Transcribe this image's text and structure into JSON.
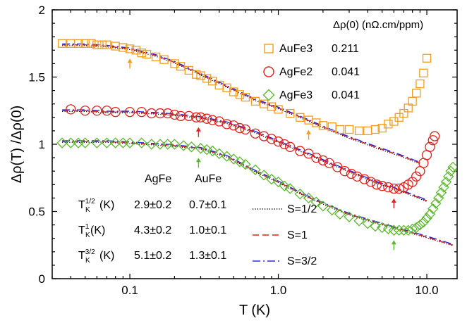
{
  "chart_data": {
    "type": "scatter",
    "xlabel": "T (K)",
    "ylabel": "Δρ(T) /Δρ(0)",
    "xscale": "log",
    "xlim": [
      0.03,
      16
    ],
    "ylim": [
      0,
      2
    ],
    "x_ticks": [
      {
        "value": 0.1,
        "label": "0.1"
      },
      {
        "value": 1,
        "label": "1.0"
      },
      {
        "value": 10,
        "label": "10.0"
      }
    ],
    "y_ticks": [
      {
        "value": 0,
        "label": "0"
      },
      {
        "value": 0.5,
        "label": "0.5"
      },
      {
        "value": 1,
        "label": "1"
      },
      {
        "value": 1.5,
        "label": "1.5"
      },
      {
        "value": 2,
        "label": "2"
      }
    ],
    "grid": false,
    "legend_placement": "top-right",
    "legend_header": "Δρ(0) (nΩ.cm/ppm)",
    "series": [
      {
        "name": "AuFe3",
        "value": "0.211",
        "marker": "square",
        "color": "#f39c1f",
        "x": [
          0.035,
          0.04,
          0.045,
          0.05,
          0.055,
          0.06,
          0.065,
          0.07,
          0.08,
          0.09,
          0.1,
          0.11,
          0.12,
          0.13,
          0.15,
          0.17,
          0.2,
          0.22,
          0.25,
          0.28,
          0.3,
          0.33,
          0.36,
          0.4,
          0.45,
          0.5,
          0.55,
          0.6,
          0.7,
          0.8,
          0.9,
          1.0,
          1.2,
          1.4,
          1.6,
          1.8,
          2.0,
          2.3,
          2.6,
          3.0,
          3.5,
          4.0,
          4.5,
          5.0,
          5.5,
          6.0,
          6.5,
          7.0,
          7.5,
          8.0,
          8.5,
          9.0,
          9.5,
          10.0
        ],
        "y": [
          1.75,
          1.75,
          1.75,
          1.75,
          1.75,
          1.74,
          1.74,
          1.74,
          1.73,
          1.72,
          1.71,
          1.7,
          1.68,
          1.67,
          1.65,
          1.63,
          1.6,
          1.58,
          1.55,
          1.52,
          1.51,
          1.49,
          1.47,
          1.44,
          1.42,
          1.39,
          1.37,
          1.35,
          1.32,
          1.3,
          1.28,
          1.26,
          1.23,
          1.2,
          1.18,
          1.16,
          1.14,
          1.13,
          1.11,
          1.11,
          1.1,
          1.1,
          1.11,
          1.12,
          1.15,
          1.17,
          1.2,
          1.23,
          1.27,
          1.32,
          1.38,
          1.45,
          1.53,
          1.64
        ]
      },
      {
        "name": "AgFe2",
        "value": "0.041",
        "marker": "circle",
        "color": "#e0211d",
        "x": [
          0.04,
          0.05,
          0.06,
          0.07,
          0.08,
          0.1,
          0.12,
          0.14,
          0.16,
          0.18,
          0.2,
          0.22,
          0.25,
          0.28,
          0.3,
          0.33,
          0.36,
          0.4,
          0.45,
          0.5,
          0.55,
          0.6,
          0.7,
          0.8,
          0.9,
          1.0,
          1.1,
          1.2,
          1.4,
          1.6,
          1.8,
          2.0,
          2.2,
          2.5,
          2.8,
          3.1,
          3.4,
          3.8,
          4.2,
          4.6,
          5.0,
          5.5,
          6.0,
          6.5,
          7.0,
          7.5,
          8.0,
          8.5,
          9.0,
          9.5,
          10.0,
          10.5,
          11.0,
          11.3
        ],
        "y": [
          1.26,
          1.25,
          1.25,
          1.25,
          1.24,
          1.24,
          1.24,
          1.23,
          1.23,
          1.23,
          1.22,
          1.21,
          1.21,
          1.2,
          1.2,
          1.19,
          1.18,
          1.17,
          1.15,
          1.14,
          1.12,
          1.11,
          1.08,
          1.06,
          1.04,
          1.02,
          1.0,
          0.98,
          0.95,
          0.93,
          0.9,
          0.88,
          0.86,
          0.83,
          0.8,
          0.78,
          0.76,
          0.74,
          0.72,
          0.7,
          0.69,
          0.68,
          0.67,
          0.67,
          0.68,
          0.7,
          0.72,
          0.76,
          0.8,
          0.86,
          0.92,
          0.98,
          1.03,
          1.06
        ]
      },
      {
        "name": "AgFe3",
        "value": "0.041",
        "marker": "diamond",
        "color": "#5cb82e",
        "x": [
          0.035,
          0.04,
          0.045,
          0.05,
          0.06,
          0.07,
          0.08,
          0.09,
          0.1,
          0.12,
          0.14,
          0.16,
          0.18,
          0.2,
          0.23,
          0.26,
          0.3,
          0.33,
          0.36,
          0.4,
          0.45,
          0.5,
          0.55,
          0.6,
          0.7,
          0.8,
          0.9,
          1.0,
          1.1,
          1.2,
          1.4,
          1.6,
          1.8,
          2.0,
          2.3,
          2.6,
          3.0,
          3.5,
          4.0,
          4.5,
          5.0,
          5.5,
          6.0,
          6.5,
          7.0,
          7.5,
          8.0,
          8.5,
          9.0,
          9.5,
          10.0,
          10.5,
          11.0,
          11.5,
          12.0,
          12.5,
          13.0,
          13.5,
          14.0,
          14.5,
          15.0
        ],
        "y": [
          1.01,
          1.01,
          1.01,
          1.01,
          1.01,
          1.01,
          1.01,
          1.01,
          1.01,
          1.01,
          1.0,
          1.0,
          1.0,
          1.0,
          0.99,
          0.98,
          0.97,
          0.96,
          0.95,
          0.93,
          0.91,
          0.89,
          0.87,
          0.85,
          0.81,
          0.77,
          0.74,
          0.72,
          0.69,
          0.67,
          0.63,
          0.6,
          0.57,
          0.54,
          0.51,
          0.48,
          0.46,
          0.43,
          0.41,
          0.39,
          0.38,
          0.37,
          0.36,
          0.36,
          0.36,
          0.36,
          0.37,
          0.38,
          0.4,
          0.42,
          0.45,
          0.48,
          0.52,
          0.56,
          0.6,
          0.64,
          0.68,
          0.72,
          0.76,
          0.8,
          0.83
        ]
      }
    ],
    "fits": [
      {
        "name": "S=1/2",
        "style": "dotted",
        "color": "#000000",
        "width": 1.2
      },
      {
        "name": "S=1",
        "style": "dashed",
        "color": "#e0211d",
        "width": 1.4
      },
      {
        "name": "S=3/2",
        "style": "dashdot",
        "color": "#2b2bd6",
        "width": 1.4
      }
    ],
    "fit_curves": [
      {
        "series": "AuFe3",
        "x": [
          0.035,
          0.05,
          0.07,
          0.1,
          0.15,
          0.2,
          0.3,
          0.45,
          0.7,
          1.0,
          1.5,
          2.2,
          3.0,
          4.5,
          6.5,
          9.0
        ],
        "y": [
          1.74,
          1.74,
          1.73,
          1.71,
          1.66,
          1.61,
          1.52,
          1.43,
          1.33,
          1.27,
          1.19,
          1.11,
          1.05,
          0.98,
          0.92,
          0.86
        ]
      },
      {
        "series": "AgFe2",
        "x": [
          0.035,
          0.05,
          0.07,
          0.1,
          0.15,
          0.2,
          0.3,
          0.45,
          0.7,
          1.0,
          1.5,
          2.2,
          3.0,
          4.5,
          6.5,
          10.0
        ],
        "y": [
          1.25,
          1.25,
          1.24,
          1.24,
          1.23,
          1.22,
          1.2,
          1.16,
          1.09,
          1.02,
          0.94,
          0.86,
          0.8,
          0.72,
          0.66,
          0.58
        ]
      },
      {
        "series": "AgFe3",
        "x": [
          0.035,
          0.05,
          0.07,
          0.1,
          0.15,
          0.2,
          0.3,
          0.45,
          0.7,
          1.0,
          1.5,
          2.2,
          3.0,
          4.5,
          6.5,
          10.0,
          15.0
        ],
        "y": [
          1.02,
          1.02,
          1.02,
          1.01,
          1.0,
          0.99,
          0.97,
          0.91,
          0.8,
          0.72,
          0.62,
          0.54,
          0.48,
          0.42,
          0.37,
          0.31,
          0.25
        ]
      }
    ],
    "arrows": [
      {
        "series": "AuFe3",
        "x": [
          0.1,
          1.6
        ]
      },
      {
        "series": "AgFe2",
        "x": [
          0.29,
          6.0
        ]
      },
      {
        "series": "AgFe3",
        "x": [
          0.29,
          6.0
        ]
      }
    ],
    "table": {
      "columns": [
        "AgFe",
        "AuFe"
      ],
      "rows": [
        {
          "sub": "K",
          "sup": "1/2",
          "suffix": "(K)",
          "values": [
            "2.9±0.2",
            "0.7±0.1"
          ]
        },
        {
          "sub": "K",
          "sup": "1",
          "suffix": "(K)",
          "values": [
            "4.3±0.2",
            "1.0±0.1"
          ]
        },
        {
          "sub": "K",
          "sup": "3/2",
          "suffix": "(K)",
          "values": [
            "5.1±0.2",
            "1.3±0.1"
          ]
        }
      ],
      "row_prefix": "T"
    }
  }
}
